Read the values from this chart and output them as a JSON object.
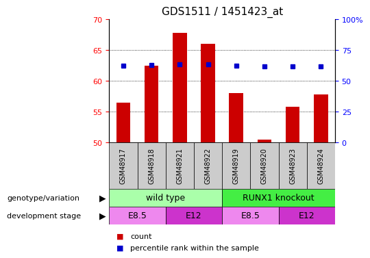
{
  "title": "GDS1511 / 1451423_at",
  "samples": [
    "GSM48917",
    "GSM48918",
    "GSM48921",
    "GSM48922",
    "GSM48919",
    "GSM48920",
    "GSM48923",
    "GSM48924"
  ],
  "count_values": [
    56.5,
    62.5,
    67.8,
    66.0,
    58.0,
    50.5,
    55.8,
    57.8
  ],
  "percentile_values": [
    62.5,
    63.0,
    63.5,
    63.2,
    62.5,
    62.0,
    62.0,
    62.0
  ],
  "count_base": 50,
  "ylim_left": [
    50,
    70
  ],
  "ylim_right": [
    0,
    100
  ],
  "yticks_left": [
    50,
    55,
    60,
    65,
    70
  ],
  "yticks_right": [
    0,
    25,
    50,
    75,
    100
  ],
  "ytick_labels_right": [
    "0",
    "25",
    "50",
    "75",
    "100%"
  ],
  "bar_color": "#cc0000",
  "dot_color": "#0000cc",
  "genotype_groups": [
    {
      "label": "wild type",
      "start": 0,
      "end": 4,
      "color": "#aaffaa"
    },
    {
      "label": "RUNX1 knockout",
      "start": 4,
      "end": 8,
      "color": "#44ee44"
    }
  ],
  "dev_groups": [
    {
      "label": "E8.5",
      "start": 0,
      "end": 2,
      "color": "#ee88ee"
    },
    {
      "label": "E12",
      "start": 2,
      "end": 4,
      "color": "#cc33cc"
    },
    {
      "label": "E8.5",
      "start": 4,
      "end": 6,
      "color": "#ee88ee"
    },
    {
      "label": "E12",
      "start": 6,
      "end": 8,
      "color": "#cc33cc"
    }
  ],
  "legend_count_label": "count",
  "legend_pct_label": "percentile rank within the sample",
  "genotype_label": "genotype/variation",
  "dev_label": "development stage",
  "bar_width": 0.5,
  "title_fontsize": 11,
  "tick_fontsize": 8,
  "label_fontsize": 8,
  "sample_fontsize": 7,
  "group_fontsize": 9,
  "sample_bg": "#cccccc",
  "grid_yticks": [
    55,
    60,
    65
  ]
}
